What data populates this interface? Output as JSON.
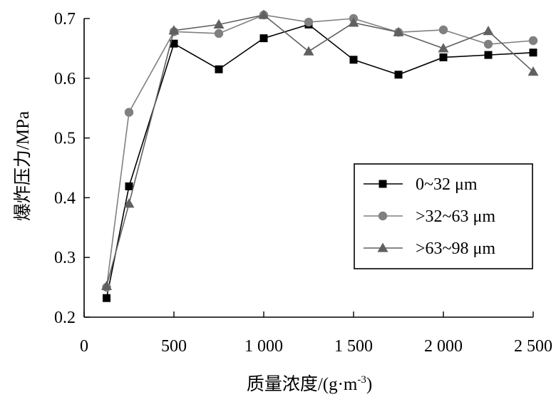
{
  "chart_data": {
    "type": "line",
    "title": "",
    "xlabel_main": "质量浓度/(g·m",
    "xlabel_sup": "-3",
    "xlabel_end": ")",
    "ylabel": "爆炸压力/MPa",
    "xlim": [
      0,
      2500
    ],
    "ylim": [
      0.2,
      0.7
    ],
    "x_ticks": [
      0,
      500,
      1000,
      1500,
      2000,
      2500
    ],
    "x_tick_labels": [
      "0",
      "500",
      "1 000",
      "1 500",
      "2 000",
      "2 500"
    ],
    "y_ticks": [
      0.2,
      0.3,
      0.4,
      0.5,
      0.6,
      0.7
    ],
    "y_tick_labels": [
      "0.2",
      "0.3",
      "0.4",
      "0.5",
      "0.6",
      "0.7"
    ],
    "grid": false,
    "legend_position": "middle-right",
    "series": [
      {
        "name": "0~32 μm",
        "marker": "square",
        "color": "#000000",
        "x": [
          125,
          250,
          500,
          750,
          1000,
          1250,
          1500,
          1750,
          2000,
          2250,
          2500
        ],
        "values": [
          0.232,
          0.419,
          0.658,
          0.615,
          0.667,
          0.69,
          0.631,
          0.606,
          0.635,
          0.639,
          0.643
        ]
      },
      {
        "name": ">32~63 μm",
        "marker": "circle",
        "color": "#808080",
        "x": [
          125,
          250,
          500,
          750,
          1000,
          1250,
          1500,
          1750,
          2000,
          2250,
          2500
        ],
        "values": [
          0.25,
          0.543,
          0.678,
          0.675,
          0.706,
          0.694,
          0.7,
          0.677,
          0.681,
          0.657,
          0.663
        ]
      },
      {
        "name": ">63~98 μm",
        "marker": "triangle",
        "color": "#606060",
        "x": [
          125,
          250,
          500,
          750,
          1000,
          1250,
          1500,
          1750,
          2000,
          2250,
          2500
        ],
        "values": [
          0.252,
          0.39,
          0.68,
          0.69,
          0.706,
          0.645,
          0.693,
          0.677,
          0.65,
          0.679,
          0.611
        ]
      }
    ]
  }
}
